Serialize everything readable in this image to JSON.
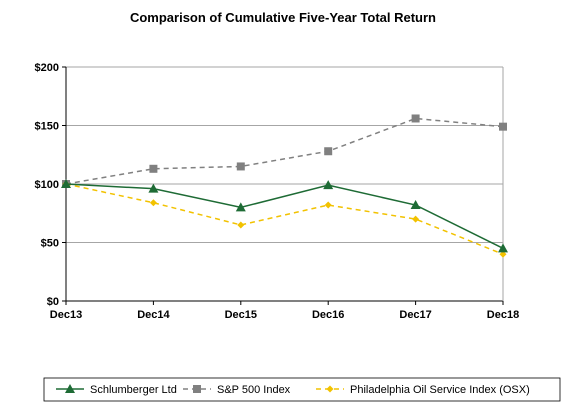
{
  "chart_data": {
    "type": "line",
    "title": "Comparison of Cumulative Five-Year Total Return",
    "xlabel": "",
    "ylabel": "",
    "categories": [
      "Dec13",
      "Dec14",
      "Dec15",
      "Dec16",
      "Dec17",
      "Dec18"
    ],
    "ylim": [
      0,
      200
    ],
    "yticks": [
      0,
      50,
      100,
      150,
      200
    ],
    "ytick_labels": [
      "$0",
      "$50",
      "$100",
      "$150",
      "$200"
    ],
    "grid": true,
    "legend_position": "bottom",
    "series": [
      {
        "name": "Schlumberger Ltd",
        "values": [
          100,
          96,
          80,
          99,
          82,
          45
        ],
        "color": "#1e6b35",
        "dash": "solid",
        "marker": "triangle"
      },
      {
        "name": "S&P 500 Index",
        "values": [
          100,
          113,
          115,
          128,
          156,
          149
        ],
        "color": "#808080",
        "dash": "dashed",
        "marker": "square"
      },
      {
        "name": "Philadelphia Oil Service Index (OSX)",
        "values": [
          100,
          84,
          65,
          82,
          70,
          40
        ],
        "color": "#f2c200",
        "dash": "dashed",
        "marker": "diamond"
      }
    ]
  }
}
